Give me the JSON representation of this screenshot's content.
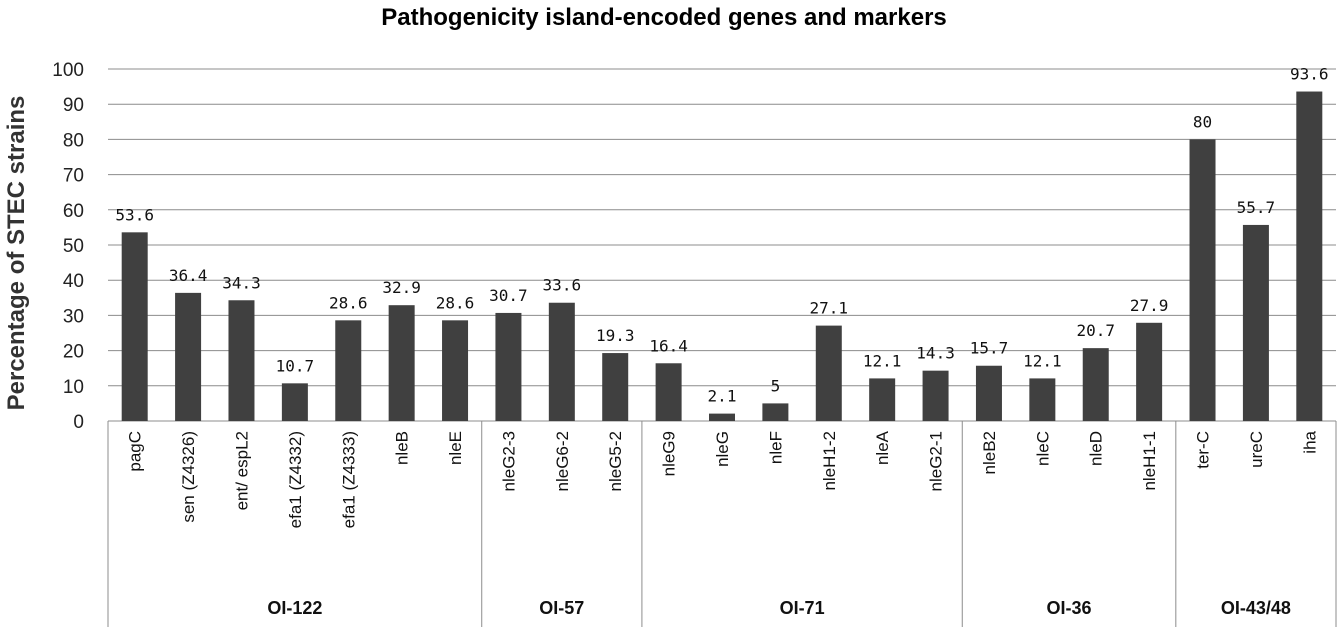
{
  "chart_data": {
    "type": "bar",
    "title": "Pathogenicity island-encoded genes and markers",
    "ylabel": "Percentage of STEC strains",
    "ylim": [
      0,
      100
    ],
    "yticks": [
      0,
      10,
      20,
      30,
      40,
      50,
      60,
      70,
      80,
      90,
      100
    ],
    "grid": true,
    "bar_color": "#404040",
    "categories": [
      "pagC",
      "sen (Z4326)",
      "ent/ espL2",
      "efa1 (Z4332)",
      "efa1 (Z4333)",
      "nleB",
      "nleE",
      "nleG2-3",
      "nleG6-2",
      "nleG5-2",
      "nleG9",
      "nleG",
      "nleF",
      "nleH1-2",
      "nleA",
      "nleG2-1",
      "nleB2",
      "nleC",
      "nleD",
      "nleH1-1",
      "ter-C",
      "ureC",
      "iha"
    ],
    "values": [
      53.6,
      36.4,
      34.3,
      10.7,
      28.6,
      32.9,
      28.6,
      30.7,
      33.6,
      19.3,
      16.4,
      2.1,
      5,
      27.1,
      12.1,
      14.3,
      15.7,
      12.1,
      20.7,
      27.9,
      80,
      55.7,
      93.6
    ],
    "data_labels": [
      "53.6",
      "36.4",
      "34.3",
      "10.7",
      "28.6",
      "32.9",
      "28.6",
      "30.7",
      "33.6",
      "19.3",
      "16.4",
      "2.1",
      "5",
      "27.1",
      "12.1",
      "14.3",
      "15.7",
      "12.1",
      "20.7",
      "27.9",
      "80",
      "55.7",
      "93.6"
    ],
    "groups": [
      {
        "name": "OI-122",
        "count": 7
      },
      {
        "name": "OI-57",
        "count": 3
      },
      {
        "name": "OI-71",
        "count": 6
      },
      {
        "name": "OI-36",
        "count": 4
      },
      {
        "name": "OI-43/48",
        "count": 3
      }
    ]
  }
}
